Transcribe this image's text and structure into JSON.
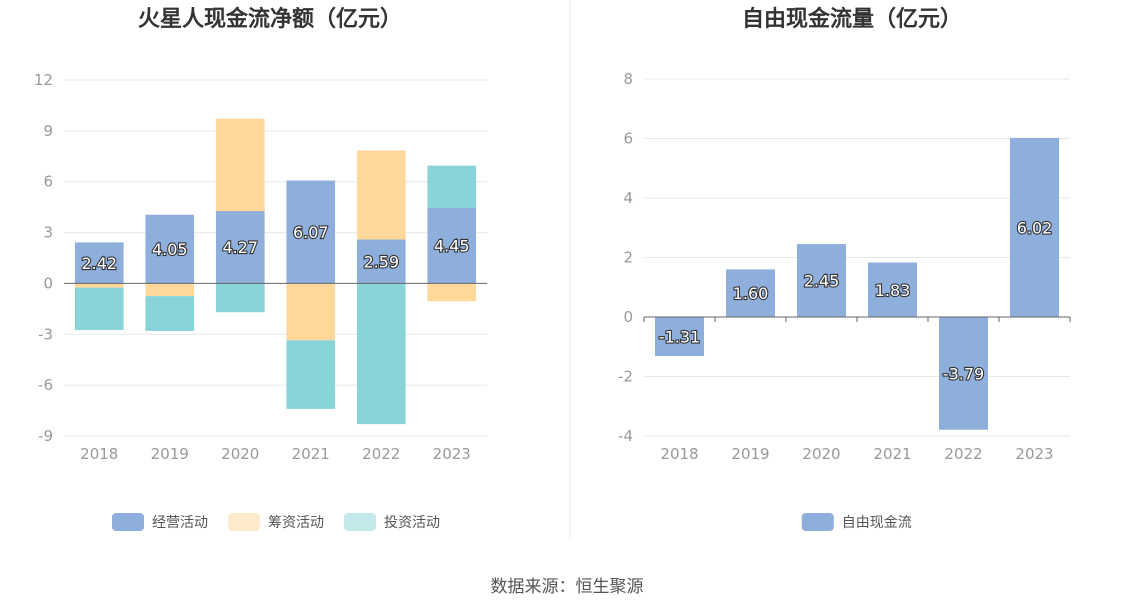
{
  "source": "数据来源：恒生聚源",
  "colors": {
    "operating": "#8eaedb",
    "financing": "#ffd89a",
    "investing": "#88d4d8",
    "free_cash_flow": "#8eaedb",
    "grid": "#e6e8ee",
    "axis": "#666666"
  },
  "chart_data": [
    {
      "type": "bar",
      "stacked": true,
      "title": "火星人现金流净额（亿元）",
      "categories": [
        "2018",
        "2019",
        "2020",
        "2021",
        "2022",
        "2023"
      ],
      "ylim": [
        -9,
        12
      ],
      "yticks": [
        12,
        9,
        6,
        3,
        0,
        -3,
        -6,
        -9
      ],
      "legend_position": "bottom",
      "series": [
        {
          "name": "经营活动",
          "values": [
            2.42,
            4.05,
            4.27,
            6.07,
            2.59,
            4.45
          ],
          "labels": [
            "2.42",
            "4.05",
            "4.27",
            "6.07",
            "2.59",
            "4.45"
          ]
        },
        {
          "name": "筹资活动",
          "values": [
            -0.25,
            -0.75,
            5.45,
            -3.35,
            5.25,
            -1.05
          ]
        },
        {
          "name": "投资活动",
          "values": [
            -2.5,
            -2.05,
            -1.7,
            -4.05,
            -8.3,
            2.5
          ]
        }
      ]
    },
    {
      "type": "bar",
      "title": "自由现金流量（亿元）",
      "categories": [
        "2018",
        "2019",
        "2020",
        "2021",
        "2022",
        "2023"
      ],
      "ylim": [
        -4,
        8
      ],
      "yticks": [
        8,
        6,
        4,
        2,
        0,
        -2,
        -4
      ],
      "legend_position": "bottom",
      "series": [
        {
          "name": "自由现金流",
          "values": [
            -1.31,
            1.6,
            2.45,
            1.83,
            -3.79,
            6.02
          ],
          "labels": [
            "-1.31",
            "1.60",
            "2.45",
            "1.83",
            "-3.79",
            "6.02"
          ]
        }
      ]
    }
  ]
}
